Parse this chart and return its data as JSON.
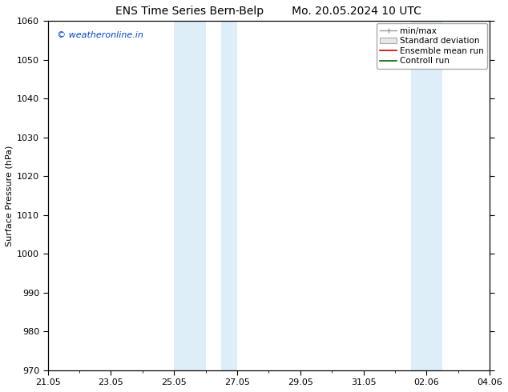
{
  "title_left": "ENS Time Series Bern-Belp",
  "title_right": "Mo. 20.05.2024 10 UTC",
  "ylabel": "Surface Pressure (hPa)",
  "ylim": [
    970,
    1060
  ],
  "yticks": [
    970,
    980,
    990,
    1000,
    1010,
    1020,
    1030,
    1040,
    1050,
    1060
  ],
  "xtick_labels": [
    "21.05",
    "23.05",
    "25.05",
    "27.05",
    "29.05",
    "31.05",
    "02.06",
    "04.06"
  ],
  "xtick_positions": [
    0,
    2,
    4,
    6,
    8,
    10,
    12,
    14
  ],
  "x_minor_positions": [
    1,
    3,
    5,
    7,
    9,
    11,
    13
  ],
  "shaded_bands": [
    {
      "x_start": 4.0,
      "x_end": 5.0,
      "color": "#ddeef8"
    },
    {
      "x_start": 5.5,
      "x_end": 6.0,
      "color": "#ddeef8"
    },
    {
      "x_start": 11.5,
      "x_end": 12.5,
      "color": "#ddeef8"
    }
  ],
  "watermark": "© weatheronline.in",
  "watermark_color": "#0044cc",
  "legend_labels": [
    "min/max",
    "Standard deviation",
    "Ensemble mean run",
    "Controll run"
  ],
  "legend_colors": [
    "#999999",
    "#cccccc",
    "#cc0000",
    "#006600"
  ],
  "background_color": "#ffffff",
  "plot_bg_color": "#ffffff",
  "title_fontsize": 10,
  "axis_fontsize": 8,
  "legend_fontsize": 7.5,
  "watermark_fontsize": 8
}
